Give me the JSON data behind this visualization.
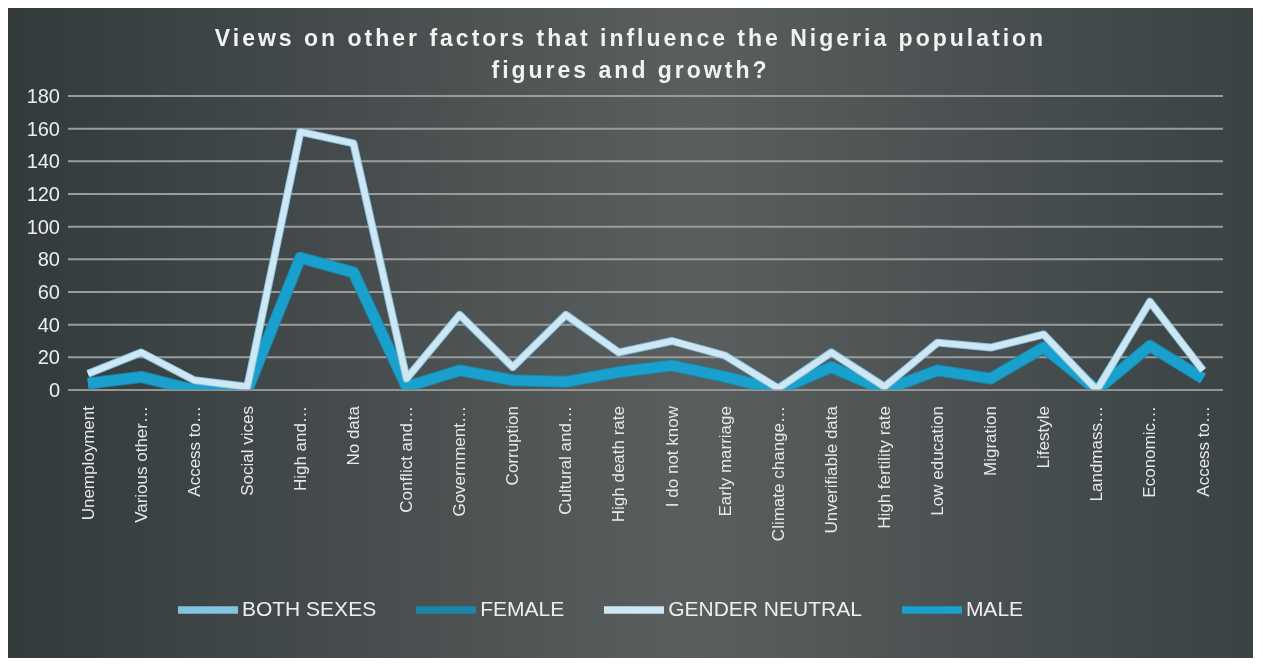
{
  "chart_data": {
    "type": "line",
    "title": "Views on other factors that influence the Nigeria population figures and growth?",
    "categories": [
      "Unemployment",
      "Various other…",
      "Access to…",
      "Social vices",
      "High and…",
      "No data",
      "Conflict and…",
      "Government…",
      "Corruption",
      "Cultural and…",
      "High death rate",
      "I do not know",
      "Early marriage",
      "Climate change…",
      "Unverifiable data",
      "High fertility rate",
      "Low education",
      "Migration",
      "Lifestyle",
      "Landmass…",
      "Economic…",
      "Access to…"
    ],
    "series": [
      {
        "name": "FEMALE",
        "color": "#1b86aa",
        "values": [
          4,
          8,
          0,
          0,
          81,
          72,
          2,
          12,
          6,
          5,
          11,
          15,
          8,
          0,
          14,
          0,
          12,
          7,
          26,
          0,
          27,
          7
        ]
      },
      {
        "name": "MALE",
        "color": "#1aa0cc",
        "values": [
          4,
          8,
          0,
          0,
          81,
          72,
          2,
          12,
          6,
          5,
          11,
          15,
          8,
          0,
          14,
          0,
          12,
          7,
          26,
          0,
          27,
          7
        ]
      },
      {
        "name": "BOTH SEXES",
        "color": "#82c4e0",
        "values": [
          10,
          23,
          6,
          2,
          158,
          151,
          7,
          46,
          14,
          46,
          23,
          30,
          21,
          1,
          23,
          2,
          29,
          26,
          34,
          0,
          54,
          12
        ]
      },
      {
        "name": "GENDER NEUTRAL",
        "color": "#cfe7f3",
        "values": [
          10,
          23,
          6,
          2,
          158,
          151,
          7,
          46,
          14,
          46,
          23,
          30,
          21,
          1,
          23,
          2,
          29,
          26,
          34,
          0,
          54,
          12
        ]
      }
    ],
    "ylim": [
      0,
      180
    ],
    "yticks": [
      0,
      20,
      40,
      60,
      80,
      100,
      120,
      140,
      160,
      180
    ],
    "grid": "y",
    "legend": "bottom",
    "marker": "none",
    "line_style": "solid"
  }
}
